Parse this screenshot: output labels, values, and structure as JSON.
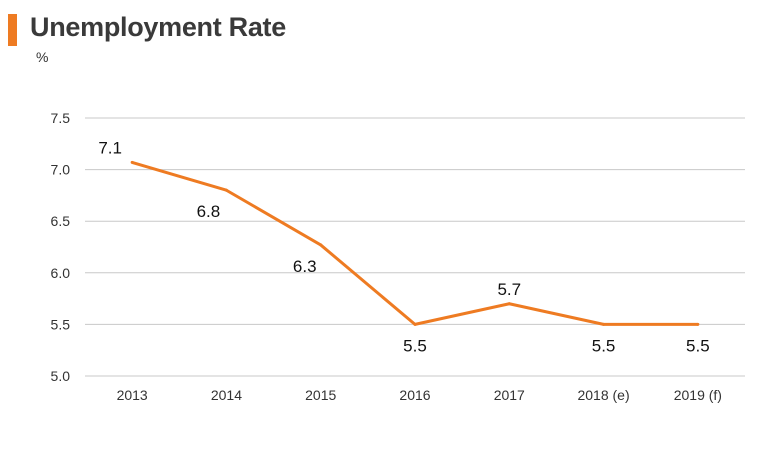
{
  "chart_data": {
    "type": "line",
    "title": "Unemployment Rate",
    "unit": "%",
    "categories": [
      "2013",
      "2014",
      "2015",
      "2016",
      "2017",
      "2018 (e)",
      "2019 (f)"
    ],
    "series": [
      {
        "values": [
          7.07,
          6.8,
          6.27,
          5.5,
          5.7,
          5.5,
          5.5
        ]
      }
    ],
    "data_labels": [
      "7.1",
      "6.8",
      "6.3",
      "5.5",
      "5.7",
      "5.5",
      "5.5"
    ],
    "y_ticks": [
      "5.0",
      "5.5",
      "6.0",
      "6.5",
      "7.0",
      "7.5"
    ],
    "ylim": [
      5.0,
      7.5
    ],
    "grid": true,
    "colors": {
      "accent": "#ee7b22",
      "line": "#ee7b22",
      "grid": "#c8c8c8"
    }
  }
}
